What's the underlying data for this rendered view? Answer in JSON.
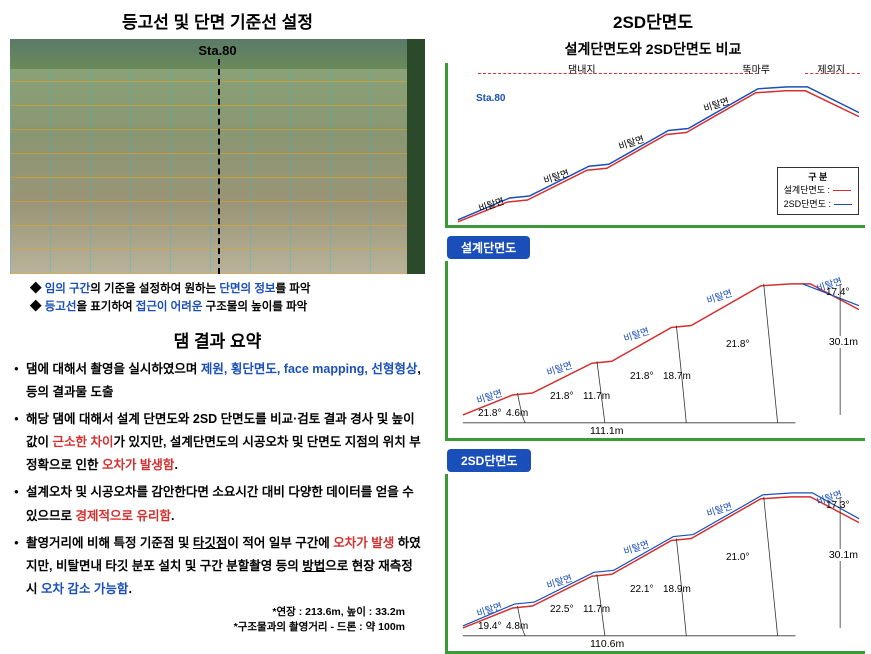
{
  "left": {
    "title1": "등고선 및 단면 기준선 설정",
    "station": "Sta.80",
    "bullets": [
      {
        "pre": "임의 구간",
        "mid": "의 기준을 설정하여 원하는 ",
        "post": "단면의 정보",
        "end": "를 파악",
        "cls": "blue"
      },
      {
        "pre": "등고선",
        "mid": "을 표기하여 ",
        "post": "접근이 어려운",
        "end": " 구조물의 높이를 파악",
        "cls": "blue"
      }
    ],
    "title2": "댐 결과 요약",
    "summary": [
      {
        "parts": [
          {
            "t": "댐에 대해서 촬영을 실시하였으며 "
          },
          {
            "t": "제원, 횡단면도, face mapping, 선형형상",
            "c": "blue"
          },
          {
            "t": ", 등의 결과물 도출"
          }
        ]
      },
      {
        "parts": [
          {
            "t": "해당 댐에 대해서 설계 단면도와 2SD 단면도를 비교·검토 결과 경사 및 높이 값이 "
          },
          {
            "t": "근소한 차이",
            "c": "red"
          },
          {
            "t": "가 있지만, 설계단면도의 시공오차 및 단면도 지점의 위치 부정확으로 인한 "
          },
          {
            "t": "오차가 발생함",
            "c": "red"
          },
          {
            "t": "."
          }
        ]
      },
      {
        "parts": [
          {
            "t": "설계오차 및 시공오차를 감안한다면 소요시간 대비 다양한 데이터를 얻을 수 있으므로 "
          },
          {
            "t": "경제적으로 유리함",
            "c": "red"
          },
          {
            "t": "."
          }
        ]
      },
      {
        "parts": [
          {
            "t": "촬영거리에 비해 특정 기준점 및 "
          },
          {
            "t": "타깃점",
            "u": true
          },
          {
            "t": "이 적어 일부 구간에 "
          },
          {
            "t": "오차가 발생",
            "c": "red"
          },
          {
            "t": " 하였지만, 비탈면내 타깃 분포 설치  및 구간 분할촬영 등의 "
          },
          {
            "t": "방법",
            "u": true
          },
          {
            "t": "으로 현장 재측정 시 "
          },
          {
            "t": "오차 감소 가능함",
            "c": "blue"
          },
          {
            "t": "."
          }
        ]
      }
    ],
    "foot1": "*연장 : 213.6m, 높이 : 33.2m",
    "foot2": "*구조물과의 촬영거리  - 드론 : 약 100m"
  },
  "right": {
    "title": "2SD단면도",
    "subtitle": "설계단면도와 2SD단면도 비교",
    "topleft": "댐내지",
    "topright": "뚝마루",
    "toprightx": "제외지",
    "sta": "Sta.80",
    "legend": {
      "title": "구 분",
      "r1": "설계단면도 :",
      "r2": "2SD단면도 :"
    },
    "slope": "비탈면",
    "tab1": "설계단면도",
    "tab2": "2SD단면도",
    "design": {
      "width": "111.1m",
      "height": "30.1m",
      "angles": [
        "21.8°",
        "21.8°",
        "21.8°",
        "21.8°",
        "17.4°"
      ],
      "heights": [
        "4.6m",
        "11.7m",
        "18.7m"
      ]
    },
    "sd2": {
      "width": "110.6m",
      "height": "30.1m",
      "angles": [
        "19.4°",
        "22.5°",
        "22.1°",
        "21.0°",
        "17.3°"
      ],
      "heights": [
        "4.8m",
        "11.7m",
        "18.9m"
      ]
    },
    "colors": {
      "red": "#d43030",
      "blue": "#1a4fba",
      "green": "#3a9a3a"
    }
  }
}
